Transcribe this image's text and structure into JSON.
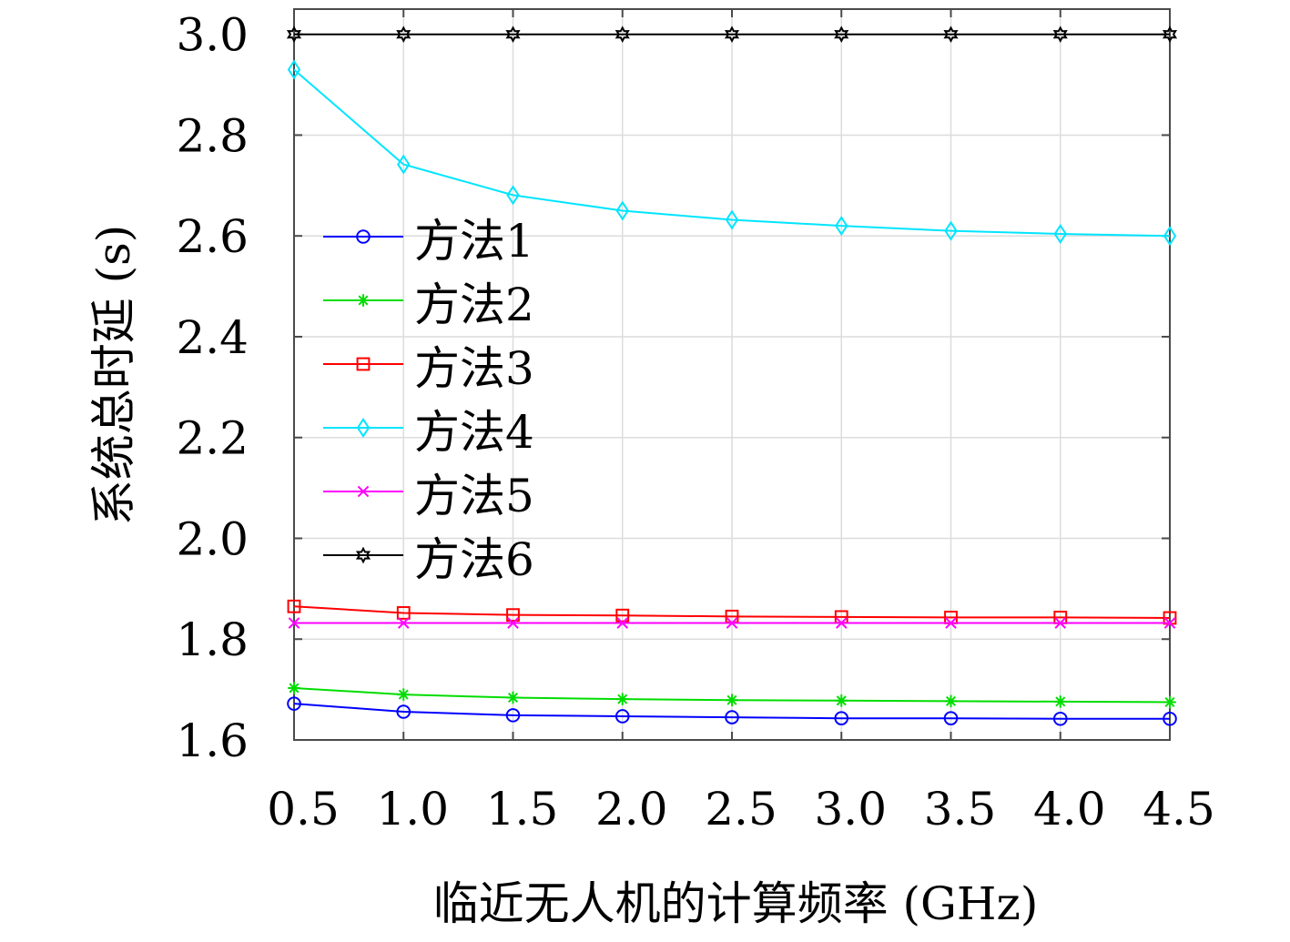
{
  "chart_data": {
    "type": "line",
    "title": "",
    "xlabel": "临近无人机的计算频率 (GHz)",
    "ylabel": "系统总时延 (s)",
    "x": [
      0.5,
      1.0,
      1.5,
      2.0,
      2.5,
      3.0,
      3.5,
      4.0,
      4.5
    ],
    "x_tick_labels": [
      "0.5",
      "1.0",
      "1.5",
      "2.0",
      "2.5",
      "3.0",
      "3.5",
      "4.0",
      "4.5"
    ],
    "y_ticks": [
      1.6,
      1.8,
      2.0,
      2.2,
      2.4,
      2.6,
      2.8,
      3.0
    ],
    "y_tick_labels": [
      "1.6",
      "1.8",
      "2.0",
      "2.2",
      "2.4",
      "2.6",
      "2.8",
      "3.0"
    ],
    "xlim": [
      0.5,
      4.5
    ],
    "ylim": [
      1.6,
      3.05
    ],
    "grid": true,
    "legend_position": "middle-left",
    "series": [
      {
        "name": "方法1",
        "color": "#0000ff",
        "marker": "circle",
        "values": [
          1.672,
          1.656,
          1.649,
          1.647,
          1.645,
          1.643,
          1.643,
          1.642,
          1.642
        ]
      },
      {
        "name": "方法2",
        "color": "#00dd00",
        "marker": "asterisk",
        "values": [
          1.703,
          1.69,
          1.684,
          1.681,
          1.679,
          1.678,
          1.677,
          1.676,
          1.675
        ]
      },
      {
        "name": "方法3",
        "color": "#ff0000",
        "marker": "square",
        "values": [
          1.865,
          1.852,
          1.848,
          1.847,
          1.845,
          1.844,
          1.843,
          1.843,
          1.842
        ]
      },
      {
        "name": "方法4",
        "color": "#00e5ff",
        "marker": "diamond",
        "values": [
          2.93,
          2.742,
          2.681,
          2.65,
          2.632,
          2.62,
          2.61,
          2.604,
          2.6
        ]
      },
      {
        "name": "方法5",
        "color": "#ff00ff",
        "marker": "x",
        "values": [
          1.832,
          1.832,
          1.832,
          1.832,
          1.832,
          1.832,
          1.832,
          1.832,
          1.832
        ]
      },
      {
        "name": "方法6",
        "color": "#000000",
        "marker": "hexagram",
        "values": [
          3.0,
          3.0,
          3.0,
          3.0,
          3.0,
          3.0,
          3.0,
          3.0,
          3.0
        ]
      }
    ]
  }
}
